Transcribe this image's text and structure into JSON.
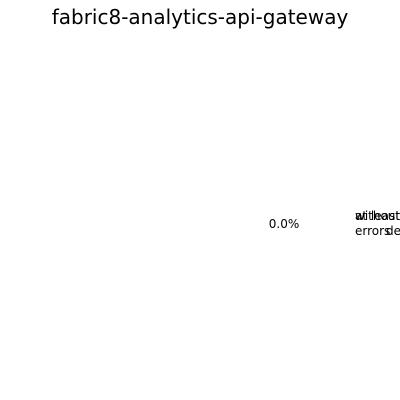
{
  "chart_data": {
    "type": "pie",
    "title": "fabric8-analytics-api-gateway",
    "slices": [
      {
        "label": "without errors",
        "value": 0.0,
        "percent_label": "0.0%",
        "color": "#1f77b4"
      },
      {
        "label": "at least",
        "value": 0.0,
        "percent_label": "",
        "color": "#ff7f0e"
      }
    ],
    "overlapping_label_fragment": "de"
  }
}
